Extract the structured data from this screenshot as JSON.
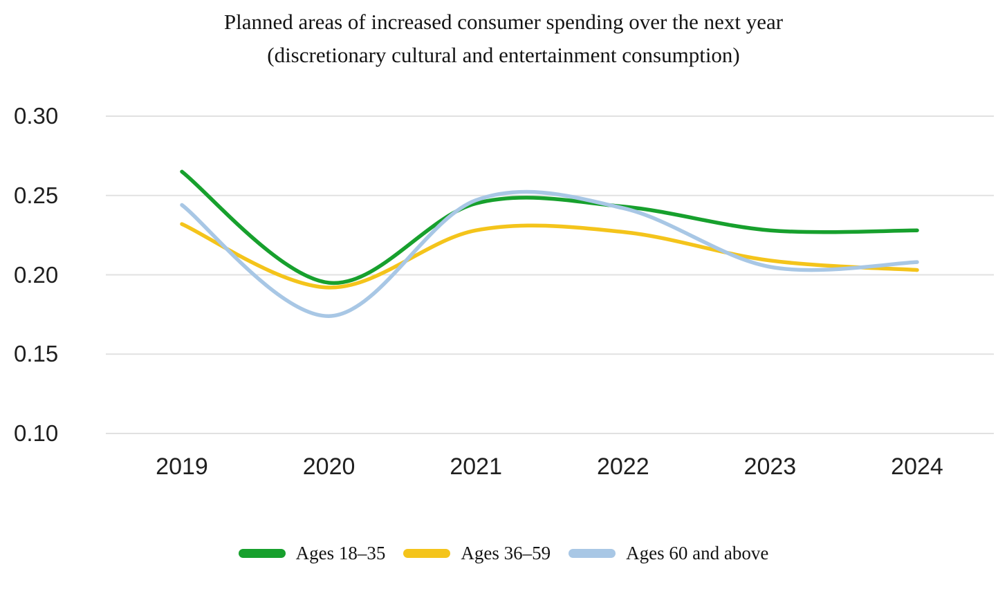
{
  "title": {
    "line1": "Planned areas of increased consumer spending over the next year",
    "line2": "(discretionary cultural and entertainment consumption)"
  },
  "chart_data": {
    "type": "line",
    "title": "Planned areas of increased consumer spending over the next year (discretionary cultural and entertainment consumption)",
    "x_categories": [
      "2019",
      "2020",
      "2021",
      "2022",
      "2023",
      "2024"
    ],
    "y_ticks": [
      "0.30",
      "0.25",
      "0.20",
      "0.15",
      "0.10"
    ],
    "ylim": [
      0.1,
      0.3
    ],
    "grid": true,
    "smoothing": "spline",
    "legend_position": "bottom",
    "gridline_color": "#e1e1e1",
    "text_color": "#1f1f1f",
    "series": [
      {
        "name": "Ages 18–35",
        "color": "#17a02d",
        "values": [
          0.265,
          0.195,
          0.245,
          0.243,
          0.228,
          0.228
        ]
      },
      {
        "name": "Ages 36–59",
        "color": "#f4c41b",
        "values": [
          0.232,
          0.192,
          0.228,
          0.227,
          0.209,
          0.203
        ]
      },
      {
        "name": "Ages 60 and above",
        "color": "#a8c7e5",
        "values": [
          0.244,
          0.174,
          0.247,
          0.242,
          0.205,
          0.208
        ]
      }
    ]
  }
}
